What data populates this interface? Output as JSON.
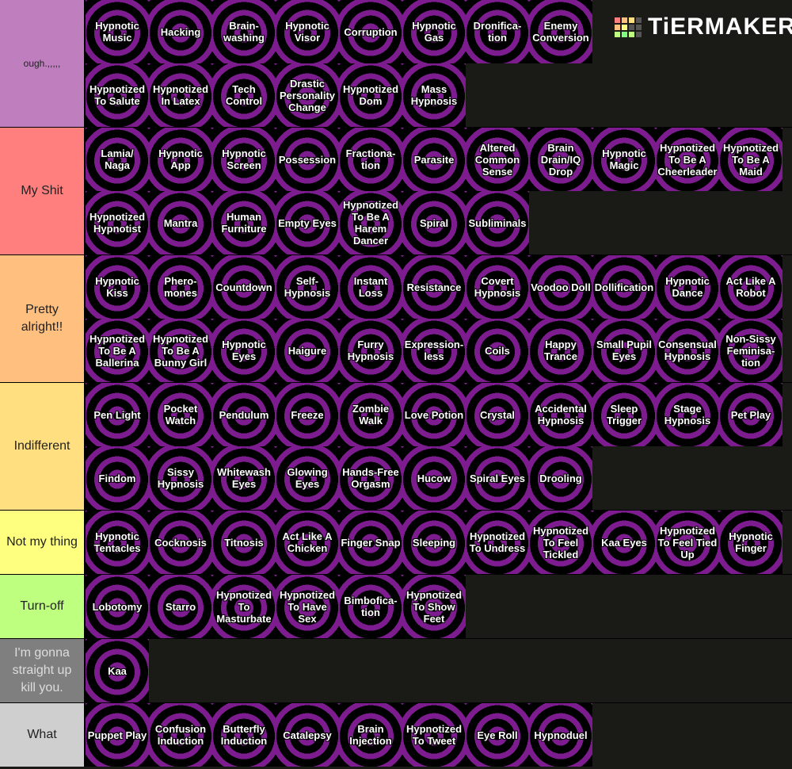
{
  "logo": "TiERMAKER",
  "tiers": [
    {
      "label": "ough.,,,,,",
      "color": "#bf7fbf",
      "items": [
        "Hypnotic Music",
        "Hacking",
        "Brain-washing",
        "Hypnotic Visor",
        "Corruption",
        "Hypnotic Gas",
        "Dronifica-tion",
        "Enemy Conversion",
        "Hypnotized To Salute",
        "Hypnotized In Latex",
        "Tech Control",
        "Drastic Personality Change",
        "Hypnotized Dom",
        "Mass Hypnosis"
      ]
    },
    {
      "label": "My Shit",
      "color": "#ff7f7f",
      "items": [
        "Lamia/ Naga",
        "Hypnotic App",
        "Hypnotic Screen",
        "Possession",
        "Fractiona-tion",
        "Parasite",
        "Altered Common Sense",
        "Brain Drain/IQ Drop",
        "Hypnotic Magic",
        "Hypnotized To Be A Cheerleader",
        "Hypnotized To Be A Maid",
        "Hypnotized Hypnotist",
        "Mantra",
        "Human Furniture",
        "Empty Eyes",
        "Hypnotized To Be A Harem Dancer",
        "Spiral",
        "Subliminals"
      ]
    },
    {
      "label": "Pretty alright!!",
      "color": "#ffbf7f",
      "items": [
        "Hypnotic Kiss",
        "Phero-mones",
        "Countdown",
        "Self-Hypnosis",
        "Instant Loss",
        "Resistance",
        "Covert Hypnosis",
        "Voodoo Doll",
        "Dollification",
        "Hypnotic Dance",
        "Act Like A Robot",
        "Hypnotized To Be A Ballerina",
        "Hypnotized To Be A Bunny Girl",
        "Hypnotic Eyes",
        "Haigure",
        "Furry Hypnosis",
        "Expression-less",
        "Coils",
        "Happy Trance",
        "Small Pupil Eyes",
        "Consensual Hypnosis",
        "Non-Sissy Feminisa-tion"
      ]
    },
    {
      "label": "Indifferent",
      "color": "#ffdf7f",
      "items": [
        "Pen Light",
        "Pocket Watch",
        "Pendulum",
        "Freeze",
        "Zombie Walk",
        "Love Potion",
        "Crystal",
        "Accidental Hypnosis",
        "Sleep Trigger",
        "Stage Hypnosis",
        "Pet Play",
        "Findom",
        "Sissy Hypnosis",
        "Whitewash Eyes",
        "Glowing Eyes",
        "Hands-Free Orgasm",
        "Hucow",
        "Spiral Eyes",
        "Drooling"
      ]
    },
    {
      "label": "Not my thing",
      "color": "#ffff7f",
      "items": [
        "Hypnotic Tentacles",
        "Cocknosis",
        "Titnosis",
        "Act Like A Chicken",
        "Finger Snap",
        "Sleeping",
        "Hypnotized To Undress",
        "Hypnotized To Feel Tickled",
        "Kaa Eyes",
        "Hypnotized To Feel Tied Up",
        "Hypnotic Finger"
      ]
    },
    {
      "label": "Turn-off",
      "color": "#bfff7f",
      "items": [
        "Lobotomy",
        "Starro",
        "Hypnotized To Masturbate",
        "Hypnotized To Have Sex",
        "Bimbofica-tion",
        "Hypnotized To Show Feet"
      ]
    },
    {
      "label": "I'm gonna straight up kill you.",
      "color": "#7f7f7f",
      "items": [
        "Kaa"
      ]
    },
    {
      "label": "What",
      "color": "#cfcfcf",
      "items": [
        "Puppet Play",
        "Confusion Induction",
        "Butterfly Induction",
        "Catalepsy",
        "Brain Injection",
        "Hypnotized To Tweet",
        "Eye Roll",
        "Hypnoduel"
      ]
    }
  ]
}
